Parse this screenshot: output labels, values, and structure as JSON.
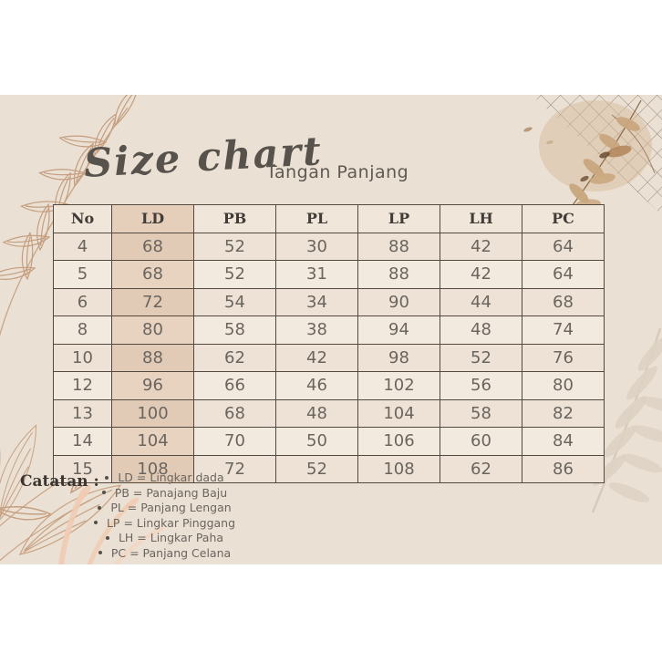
{
  "page": {
    "background": "#ffffff",
    "panel_background": "#ebe0d4"
  },
  "header": {
    "title": "Size chart",
    "subtitle": "Tangan Panjang"
  },
  "size_table": {
    "columns": [
      "No",
      "LD",
      "PB",
      "PL",
      "LP",
      "LH",
      "PC"
    ],
    "rows": [
      [
        "4",
        "68",
        "52",
        "30",
        "88",
        "42",
        "64"
      ],
      [
        "5",
        "68",
        "52",
        "31",
        "88",
        "42",
        "64"
      ],
      [
        "6",
        "72",
        "54",
        "34",
        "90",
        "44",
        "68"
      ],
      [
        "8",
        "80",
        "58",
        "38",
        "94",
        "48",
        "74"
      ],
      [
        "10",
        "88",
        "62",
        "42",
        "98",
        "52",
        "76"
      ],
      [
        "12",
        "96",
        "66",
        "46",
        "102",
        "56",
        "80"
      ],
      [
        "13",
        "100",
        "68",
        "48",
        "104",
        "58",
        "82"
      ],
      [
        "14",
        "104",
        "70",
        "50",
        "106",
        "60",
        "84"
      ],
      [
        "15",
        "108",
        "72",
        "52",
        "108",
        "62",
        "86"
      ]
    ]
  },
  "notes": {
    "label": "Catatan :",
    "items": [
      "LD = Lingkar dada",
      "PB = Panajang Baju",
      "PL = Panjang Lengan",
      "LP = Lingkar Pinggang",
      "LH = Lingkar Paha",
      "PC = Panjang Celana"
    ]
  },
  "colors": {
    "accent_tan": "#e7d3c0",
    "table_border": "#53493f",
    "body_text": "#6b655f",
    "heading_text": "#413c37",
    "title_text": "#57524c",
    "leaf_line": "#c49e7e",
    "leaf_fill": "#c8a77e",
    "peach_accent": "#f1cbb2",
    "palm_silhouette": "#ddd1c2"
  }
}
